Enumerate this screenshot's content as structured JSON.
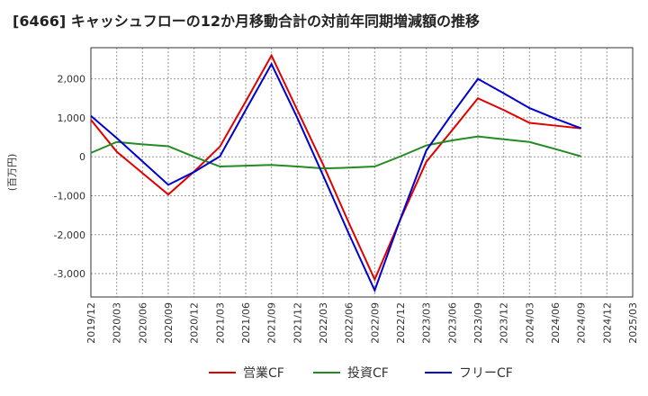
{
  "title": "[6466]  キャッシュフローの12か月移動合計の対前年同期増減額の推移",
  "chart_data": {
    "type": "line",
    "title": "[6466]  キャッシュフローの12か月移動合計の対前年同期増減額の推移",
    "xlabel": "",
    "ylabel": "(百万円)",
    "categories": [
      "2019/12",
      "2020/03",
      "2020/06",
      "2020/09",
      "2020/12",
      "2021/03",
      "2021/06",
      "2021/09",
      "2021/12",
      "2022/03",
      "2022/06",
      "2022/09",
      "2022/12",
      "2023/03",
      "2023/06",
      "2023/09",
      "2023/12",
      "2024/03",
      "2024/06",
      "2024/09",
      "2024/12",
      "2025/03"
    ],
    "y_ticks": [
      -3000,
      -2000,
      -1000,
      0,
      1000,
      2000
    ],
    "y_tick_labels": [
      "-3,000",
      "-2,000",
      "-1,000",
      "0",
      "1,000",
      "2,000"
    ],
    "ylim": [
      -3600,
      2800
    ],
    "grid": true,
    "legend_position": "bottom",
    "series": [
      {
        "name": "営業CF",
        "color": "#e00000",
        "values": [
          950,
          130,
          -420,
          -970,
          -380,
          260,
          1420,
          2600,
          1200,
          -200,
          -1700,
          -3150,
          -1600,
          -130,
          680,
          1500,
          1200,
          870,
          800,
          730,
          null,
          null
        ]
      },
      {
        "name": "投資CF",
        "color": "#228b22",
        "values": [
          100,
          380,
          320,
          270,
          0,
          -250,
          -230,
          -210,
          -250,
          -300,
          -280,
          -250,
          10,
          290,
          420,
          520,
          450,
          380,
          200,
          10,
          null,
          null
        ]
      },
      {
        "name": "フリーCF",
        "color": "#0000cc",
        "values": [
          1050,
          480,
          -120,
          -720,
          -390,
          10,
          1200,
          2380,
          1000,
          -480,
          -1980,
          -3430,
          -1590,
          160,
          1100,
          2000,
          1630,
          1250,
          980,
          730,
          null,
          null
        ]
      }
    ]
  }
}
